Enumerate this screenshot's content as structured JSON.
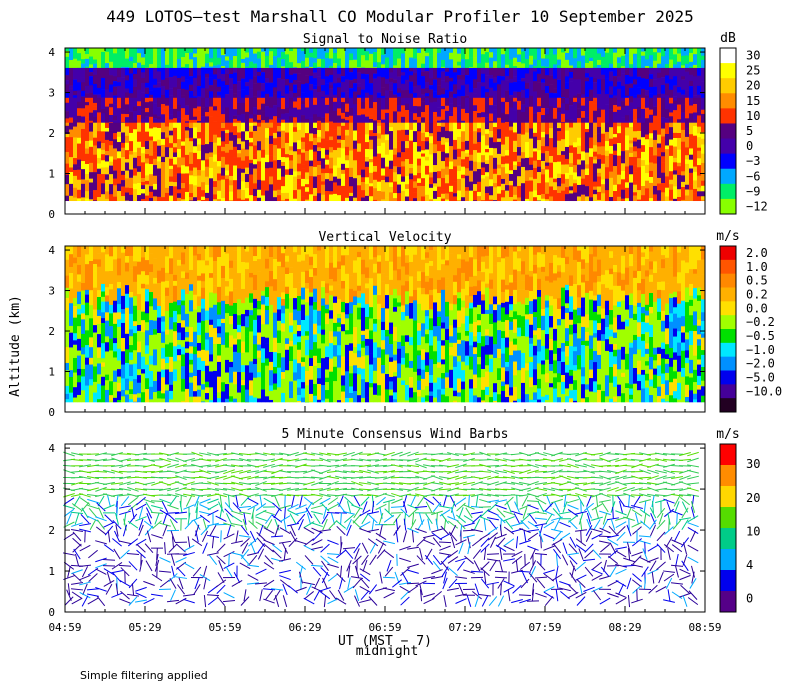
{
  "title": "449 LOTOS—test Marshall CO Modular Profiler 10 September 2025",
  "ylabel": "Altitude (km)",
  "xlabel": "UT (MST − 7)",
  "midnight_label": "midnight",
  "footer": "Simple filtering applied",
  "chart_data": [
    {
      "type": "heatmap",
      "title": "Signal to Noise Ratio",
      "ylabel": "Altitude (km)",
      "ylim": [
        0,
        4.1
      ],
      "yticks": [
        "0",
        "1",
        "2",
        "3",
        "4"
      ],
      "xticks": [
        "04:59",
        "05:29",
        "05:59",
        "06:29",
        "06:59",
        "07:29",
        "07:59",
        "08:29",
        "08:59"
      ],
      "colorbar": {
        "unit": "dB",
        "levels": [
          "30",
          "25",
          "20",
          "15",
          "10",
          "5",
          "0",
          "−3",
          "−6",
          "−9",
          "−12"
        ],
        "colors": [
          "#ffffff",
          "#ffff00",
          "#ffcc00",
          "#ff8c00",
          "#ff3300",
          "#550080",
          "#4400aa",
          "#0000ff",
          "#00a8ff",
          "#00ee66",
          "#88ff00"
        ]
      }
    },
    {
      "type": "heatmap",
      "title": "Vertical Velocity",
      "ylabel": "Altitude (km)",
      "ylim": [
        0,
        4.1
      ],
      "yticks": [
        "0",
        "1",
        "2",
        "3",
        "4"
      ],
      "xticks": [
        "04:59",
        "05:29",
        "05:59",
        "06:29",
        "06:59",
        "07:29",
        "07:59",
        "08:29",
        "08:59"
      ],
      "colorbar": {
        "unit": "m/s",
        "levels": [
          "2.0",
          "1.0",
          "0.5",
          "0.2",
          "0.0",
          "−0.2",
          "−0.5",
          "−1.0",
          "−2.0",
          "−5.0",
          "−10.0"
        ],
        "colors": [
          "#ee0000",
          "#ff5500",
          "#ff8800",
          "#ffb000",
          "#ffe000",
          "#a0ff00",
          "#00e000",
          "#00e8ff",
          "#0090ff",
          "#0000ee",
          "#440099",
          "#220022"
        ]
      }
    },
    {
      "type": "scatter",
      "title": "5 Minute Consensus Wind Barbs",
      "ylabel": "Altitude (km)",
      "ylim": [
        0,
        4.1
      ],
      "yticks": [
        "0",
        "1",
        "2",
        "3",
        "4"
      ],
      "xticks": [
        "04:59",
        "05:29",
        "05:59",
        "06:29",
        "06:59",
        "07:29",
        "07:59",
        "08:29",
        "08:59"
      ],
      "colorbar": {
        "unit": "m/s",
        "levels": [
          "30",
          "20",
          "10",
          "4",
          "0"
        ],
        "colors": [
          "#ff0000",
          "#ff8c00",
          "#ffd700",
          "#55dd00",
          "#00cc88",
          "#00aaff",
          "#0000ee",
          "#550088"
        ]
      }
    }
  ]
}
